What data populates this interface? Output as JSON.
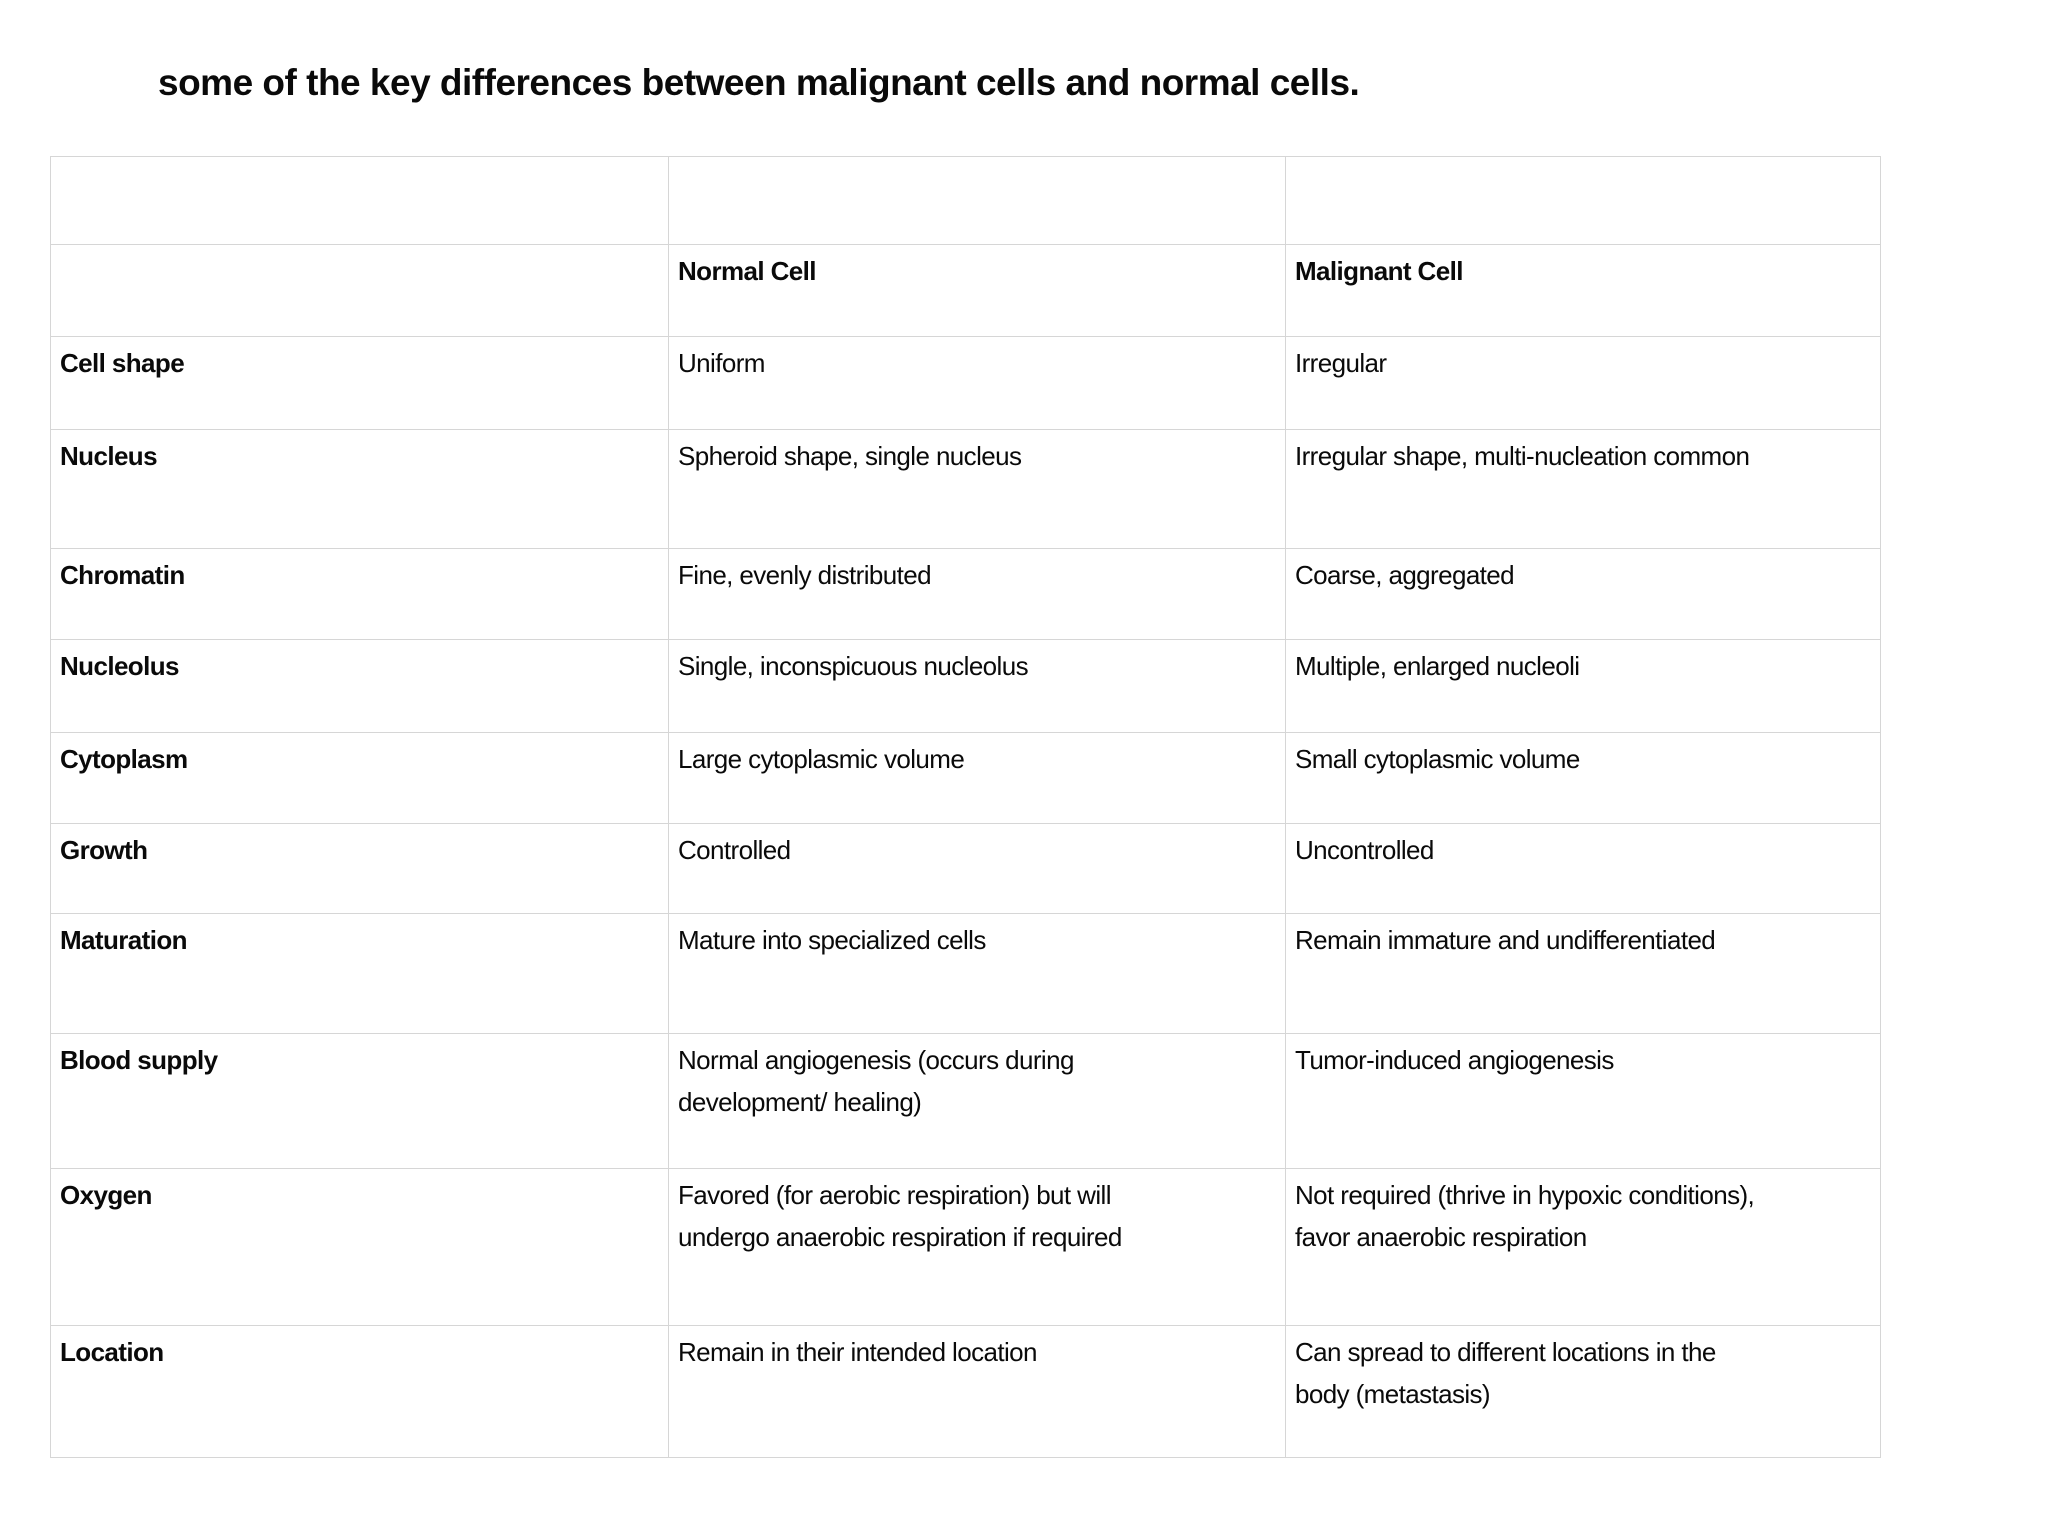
{
  "title": "some of the key differences between malignant cells and normal cells.",
  "table": {
    "header": {
      "label_column": "",
      "normal_column": "Normal Cell",
      "malignant_column": "Malignant Cell"
    },
    "rows": [
      {
        "label": "Cell shape",
        "normal": "Uniform",
        "malignant": "Irregular"
      },
      {
        "label": "Nucleus",
        "normal": "Spheroid shape, single nucleus",
        "malignant": "Irregular shape, multi-nucleation common"
      },
      {
        "label": "Chromatin",
        "normal": "Fine, evenly distributed",
        "malignant": "Coarse, aggregated"
      },
      {
        "label": "Nucleolus",
        "normal": "Single, inconspicuous nucleolus",
        "malignant": "Multiple, enlarged nucleoli"
      },
      {
        "label": "Cytoplasm",
        "normal": "Large cytoplasmic volume",
        "malignant": "Small cytoplasmic volume"
      },
      {
        "label": "Growth",
        "normal": "Controlled",
        "malignant": "Uncontrolled"
      },
      {
        "label": "Maturation",
        "normal": "Mature into specialized cells",
        "malignant": "Remain immature and undifferentiated"
      },
      {
        "label": "Blood supply",
        "normal": "Normal angiogenesis (occurs during\ndevelopment/ healing)",
        "malignant": "Tumor-induced angiogenesis"
      },
      {
        "label": "Oxygen",
        "normal": "Favored (for aerobic respiration) but will\nundergo anaerobic respiration if required",
        "malignant": "Not required (thrive in hypoxic conditions),\nfavor anaerobic respiration"
      },
      {
        "label": "Location",
        "normal": "Remain in their intended location",
        "malignant": "Can spread to different locations in the\nbody (metastasis)"
      }
    ]
  },
  "colors": {
    "table_border": "#d6d6d6",
    "text": "#0a0a0a",
    "background": "#ffffff"
  }
}
